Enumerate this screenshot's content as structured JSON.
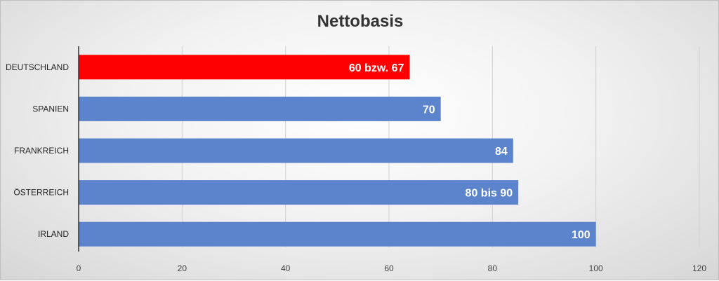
{
  "chart_data": {
    "type": "bar",
    "orientation": "horizontal",
    "title": "Nettobasis",
    "categories": [
      "DEUTSCHLAND",
      "SPANIEN",
      "FRANKREICH",
      "ÖSTERREICH",
      "IRLAND"
    ],
    "values": [
      64,
      70,
      84,
      85,
      100
    ],
    "data_labels": [
      "60 bzw. 67",
      "70",
      "84",
      "80 bis 90",
      "100"
    ],
    "colors": [
      "#ff0000",
      "#5b84cd",
      "#5b84cd",
      "#5b84cd",
      "#5b84cd"
    ],
    "xlim": [
      0,
      120
    ],
    "x_ticks": [
      0,
      20,
      40,
      60,
      80,
      100,
      120
    ],
    "grid": true,
    "legend": "none",
    "xlabel": "",
    "ylabel": ""
  }
}
